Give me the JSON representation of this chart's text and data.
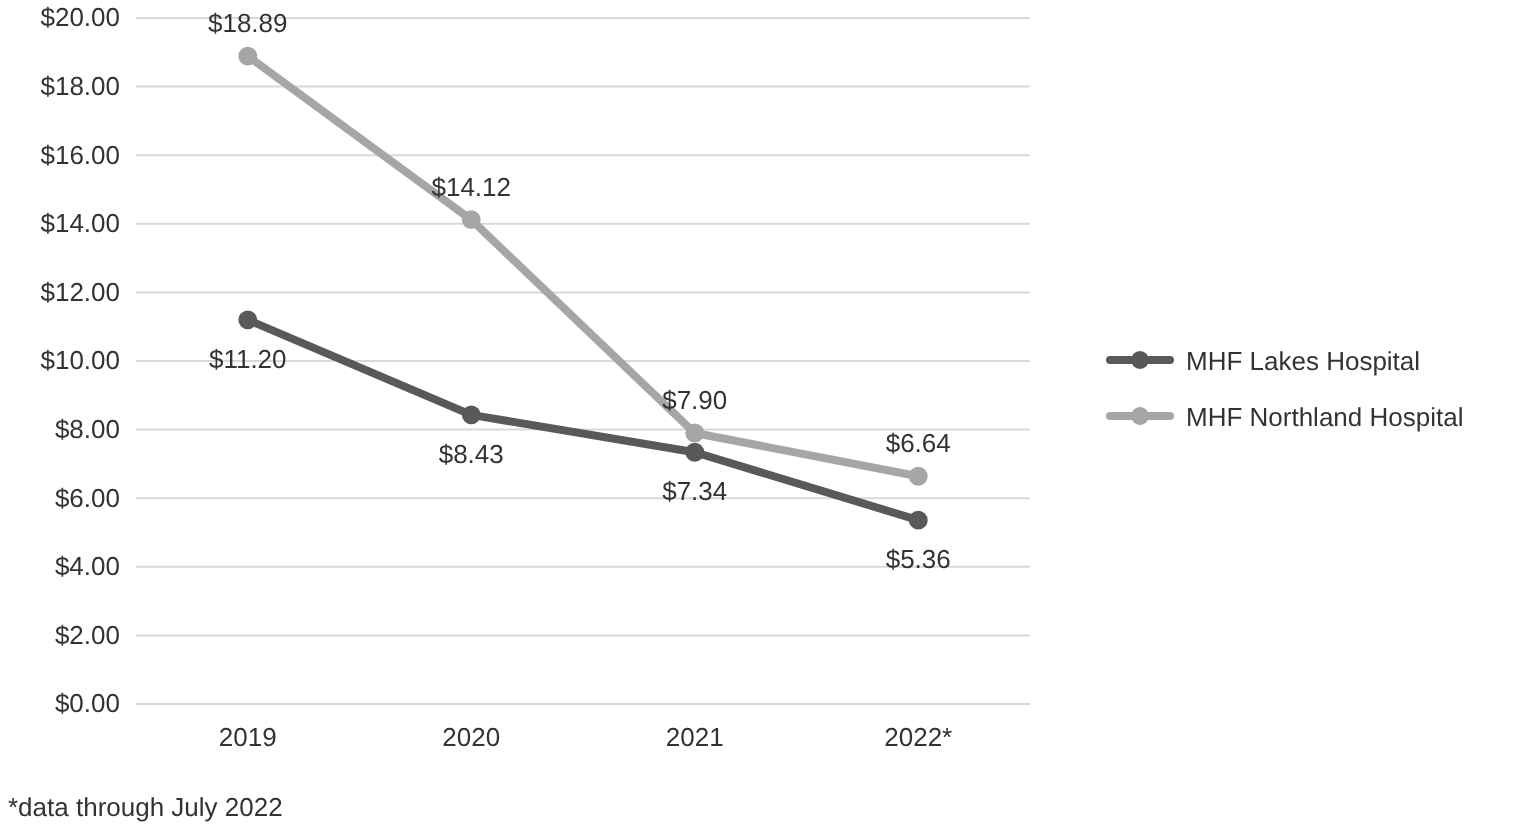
{
  "chart_data": {
    "type": "line",
    "categories": [
      "2019",
      "2020",
      "2021",
      "2022*"
    ],
    "series": [
      {
        "name": "MHF Lakes Hospital",
        "color": "#595959",
        "values": [
          11.2,
          8.43,
          7.34,
          5.36
        ],
        "value_labels": [
          "$11.20",
          "$8.43",
          "$7.34",
          "$5.36"
        ]
      },
      {
        "name": "MHF Northland Hospital",
        "color": "#a6a6a6",
        "values": [
          18.89,
          14.12,
          7.9,
          6.64
        ],
        "value_labels": [
          "$18.89",
          "$14.12",
          "$7.90",
          "$6.64"
        ]
      }
    ],
    "ylim": [
      0,
      20
    ],
    "yticks": [
      {
        "value": 0,
        "label": "$0.00"
      },
      {
        "value": 2,
        "label": "$2.00"
      },
      {
        "value": 4,
        "label": "$4.00"
      },
      {
        "value": 6,
        "label": "$6.00"
      },
      {
        "value": 8,
        "label": "$8.00"
      },
      {
        "value": 10,
        "label": "$10.00"
      },
      {
        "value": 12,
        "label": "$12.00"
      },
      {
        "value": 14,
        "label": "$14.00"
      },
      {
        "value": 16,
        "label": "$16.00"
      },
      {
        "value": 18,
        "label": "$18.00"
      },
      {
        "value": 20,
        "label": "$20.00"
      }
    ],
    "grid": "y",
    "legend": "right",
    "marker": "circle",
    "line_style": "solid",
    "annotations": [
      "*data through July 2022"
    ]
  }
}
